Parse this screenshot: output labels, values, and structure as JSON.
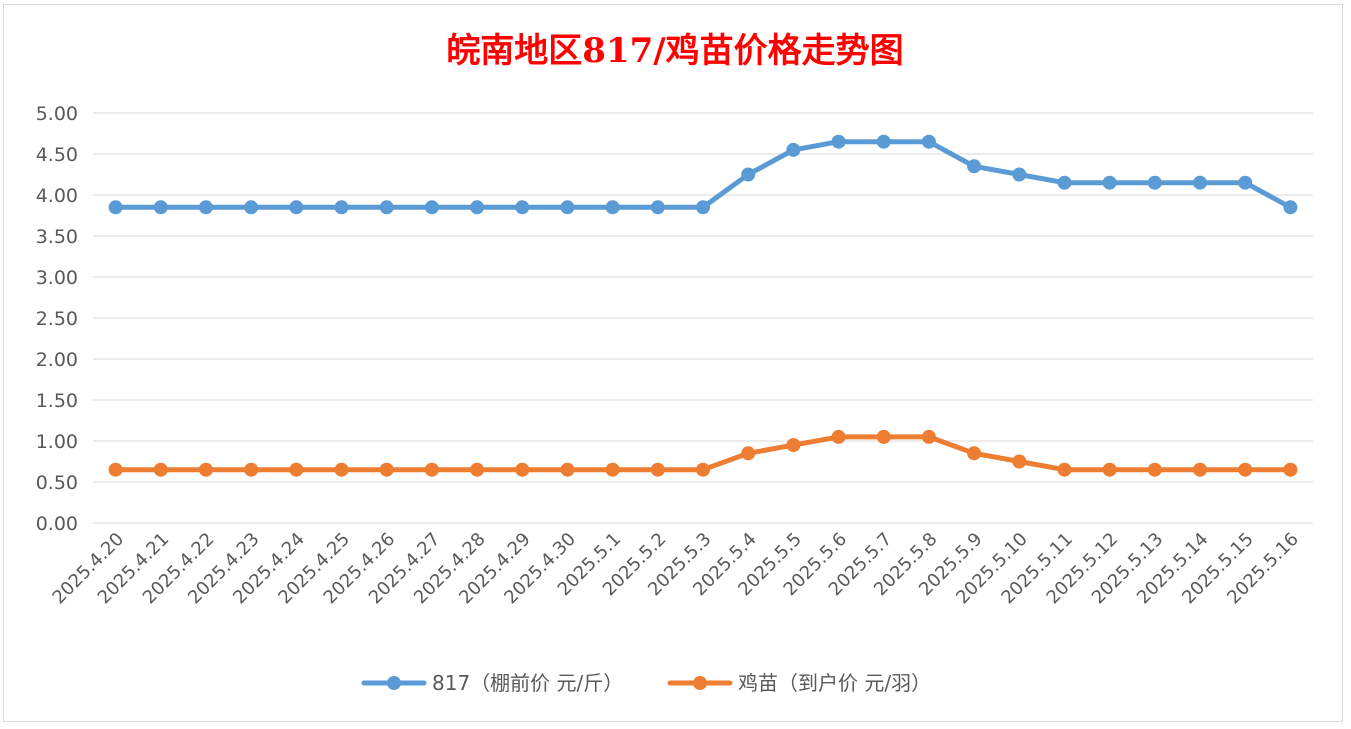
{
  "chart_data": {
    "type": "line",
    "title": "皖南地区817/鸡苗价格走势图",
    "xlabel": "",
    "ylabel": "",
    "ylim": [
      0,
      5
    ],
    "yticks": [
      "0.00",
      "0.50",
      "1.00",
      "1.50",
      "2.00",
      "2.50",
      "3.00",
      "3.50",
      "4.00",
      "4.50",
      "5.00"
    ],
    "grid": true,
    "legend_position": "bottom",
    "categories": [
      "2025.4.20",
      "2025.4.21",
      "2025.4.22",
      "2025.4.23",
      "2025.4.24",
      "2025.4.25",
      "2025.4.26",
      "2025.4.27",
      "2025.4.28",
      "2025.4.29",
      "2025.4.30",
      "2025.5.1",
      "2025.5.2",
      "2025.5.3",
      "2025.5.4",
      "2025.5.5",
      "2025.5.6",
      "2025.5.7",
      "2025.5.8",
      "2025.5.9",
      "2025.5.10",
      "2025.5.11",
      "2025.5.12",
      "2025.5.13",
      "2025.5.14",
      "2025.5.15",
      "2025.5.16"
    ],
    "series": [
      {
        "name": "817（棚前价 元/斤）",
        "color": "#5b9bd5",
        "values": [
          3.85,
          3.85,
          3.85,
          3.85,
          3.85,
          3.85,
          3.85,
          3.85,
          3.85,
          3.85,
          3.85,
          3.85,
          3.85,
          3.85,
          4.25,
          4.55,
          4.65,
          4.65,
          4.65,
          4.35,
          4.25,
          4.15,
          4.15,
          4.15,
          4.15,
          4.15,
          3.85
        ]
      },
      {
        "name": "鸡苗（到户价 元/羽）",
        "color": "#ed7d31",
        "values": [
          0.65,
          0.65,
          0.65,
          0.65,
          0.65,
          0.65,
          0.65,
          0.65,
          0.65,
          0.65,
          0.65,
          0.65,
          0.65,
          0.65,
          0.85,
          0.95,
          1.05,
          1.05,
          1.05,
          0.85,
          0.75,
          0.65,
          0.65,
          0.65,
          0.65,
          0.65,
          0.65
        ]
      }
    ]
  }
}
